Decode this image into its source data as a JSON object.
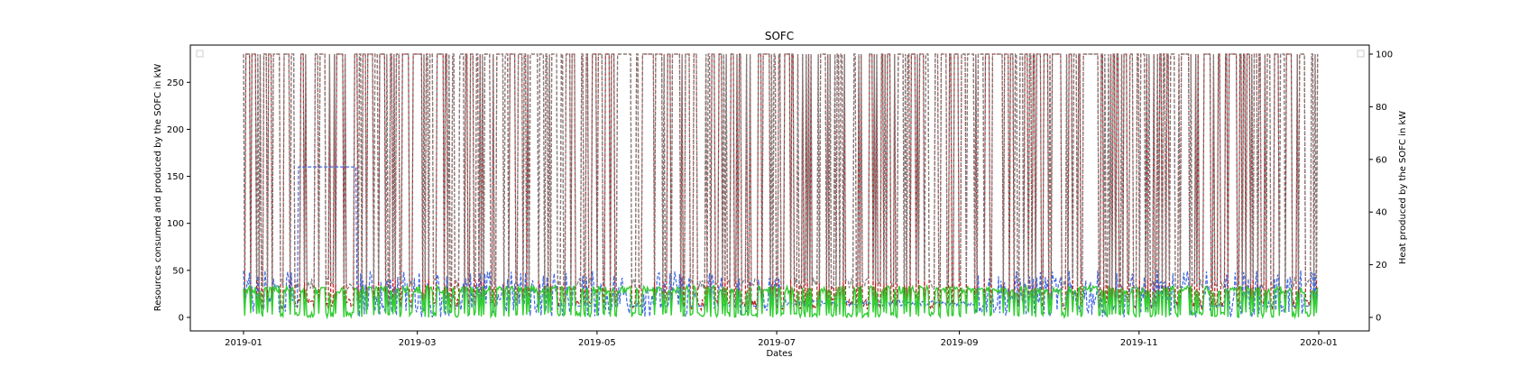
{
  "chart_data": {
    "type": "line",
    "title": "SOFC",
    "xlabel": "Dates",
    "ylabel_left": "Resources consumed and produced by the SOFC in kW",
    "ylabel_right": "Heat produced by the SOFC in kW",
    "x_range": [
      "2019-01-01",
      "2020-01-01"
    ],
    "x_ticks": [
      "2019-01",
      "2019-03",
      "2019-05",
      "2019-07",
      "2019-09",
      "2019-11",
      "2020-01"
    ],
    "ylim_left": [
      0,
      280
    ],
    "y_ticks_left": [
      "0",
      "50",
      "100",
      "150",
      "200",
      "250"
    ],
    "ylim_right": [
      0,
      100
    ],
    "y_ticks_right": [
      "0",
      "20",
      "40",
      "60",
      "80",
      "100"
    ],
    "grid": false,
    "legend": "empty boxes top-left and top-right",
    "series": [
      {
        "axis": "left",
        "color": "#b22222",
        "style": "dashed",
        "max_level": 280,
        "base_level": 8
      },
      {
        "axis": "left",
        "color": "#808080",
        "style": "dashed",
        "max_level": 280,
        "base_level": 30
      },
      {
        "axis": "left",
        "color": "#4169e1",
        "style": "dashed",
        "levels": [
          160,
          50,
          12
        ]
      },
      {
        "axis": "right",
        "color": "#32cd32",
        "style": "solid",
        "max_level": 12,
        "base_level": 0
      }
    ]
  }
}
